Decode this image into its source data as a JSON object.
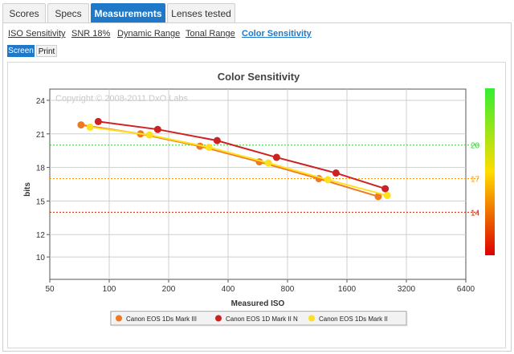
{
  "tabs": [
    {
      "label": "Scores",
      "active": false
    },
    {
      "label": "Specs",
      "active": false
    },
    {
      "label": "Measurements",
      "active": true
    },
    {
      "label": "Lenses tested",
      "active": false
    }
  ],
  "subnav": [
    {
      "label": "ISO Sensitivity",
      "active": false
    },
    {
      "label": "SNR 18%",
      "active": false
    },
    {
      "label": "Dynamic Range",
      "active": false
    },
    {
      "label": "Tonal Range",
      "active": false
    },
    {
      "label": "Color Sensitivity",
      "active": true
    }
  ],
  "view_toggle": {
    "screen": "Screen",
    "print": "Print",
    "selected": "Screen"
  },
  "chart_data": {
    "type": "line",
    "title": "Color Sensitivity",
    "xlabel": "Measured ISO",
    "ylabel": "bits",
    "x_scale": "log2",
    "xlim": [
      50,
      6400
    ],
    "ylim": [
      8,
      25
    ],
    "x_ticks": [
      50,
      100,
      200,
      400,
      800,
      1600,
      3200,
      6400
    ],
    "y_ticks": [
      10,
      12,
      15,
      18,
      21,
      24
    ],
    "watermark": "Copyright © 2008-2011 DxO Labs",
    "grid": true,
    "legend_position": "bottom",
    "reference_lines": [
      {
        "value": 20,
        "label": "20",
        "color": "#33cc33"
      },
      {
        "value": 17,
        "label": "17",
        "color": "#ff9900"
      },
      {
        "value": 14,
        "label": "14",
        "color": "#cc2200"
      }
    ],
    "color_scale": {
      "colors": [
        "#33ee33",
        "#ffdd00",
        "#dd0000"
      ]
    },
    "series": [
      {
        "name": "Canon EOS 1Ds Mark III",
        "color": "#f07820",
        "x": [
          72,
          144,
          288,
          576,
          1152,
          2304
        ],
        "y": [
          21.8,
          21.0,
          19.9,
          18.5,
          17.0,
          15.4
        ]
      },
      {
        "name": "Canon EOS 1D Mark II N",
        "color": "#cc2222",
        "x": [
          88,
          176,
          352,
          704,
          1408,
          2500
        ],
        "y": [
          22.1,
          21.4,
          20.4,
          18.9,
          17.5,
          16.1
        ]
      },
      {
        "name": "Canon EOS 1Ds Mark II",
        "color": "#ffe020",
        "x": [
          80,
          160,
          320,
          640,
          1280,
          2560
        ],
        "y": [
          21.6,
          20.9,
          19.8,
          18.4,
          16.9,
          15.5
        ]
      }
    ]
  }
}
